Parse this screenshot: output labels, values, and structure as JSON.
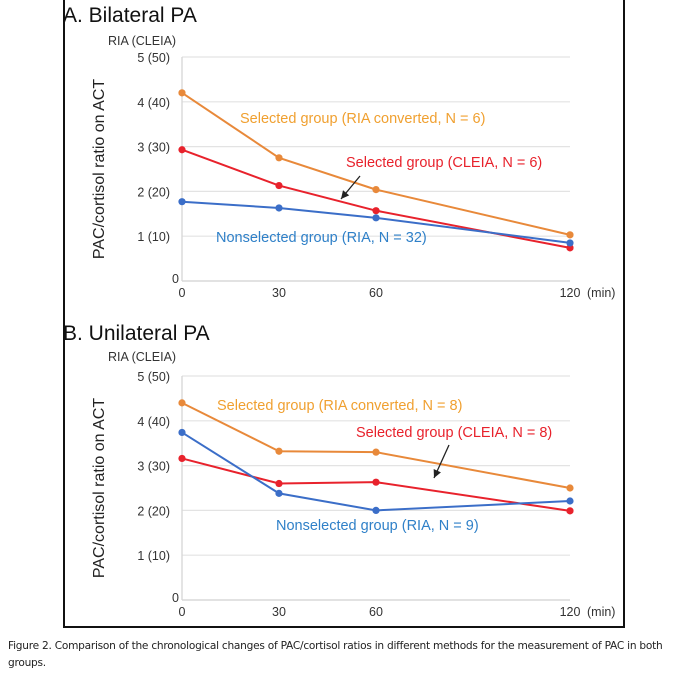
{
  "figure": {
    "caption_label": "Figure 2.",
    "caption_text": " Comparison of the chronological changes of PAC/cortisol ratios in different methods for the measurement of PAC in both groups."
  },
  "colors": {
    "orange_line": "#e8893a",
    "orange_text": "#f0a030",
    "red_line": "#e8222c",
    "red_text": "#e8222c",
    "blue_line": "#3b6ec8",
    "blue_text": "#2f80c8",
    "grid": "#e3e3e3",
    "arrow": "#222222"
  },
  "chart_data": [
    {
      "type": "line",
      "title": "A. Bilateral PA",
      "ylabel": "PAC/cortisol ratio on ACT",
      "ylabel_top": "RIA (CLEIA)",
      "xlabel": "(min)",
      "x": [
        0,
        30,
        60,
        120
      ],
      "x_tick_labels": [
        "0",
        "30",
        "60",
        "120"
      ],
      "ylim": [
        0,
        5
      ],
      "y_tick_labels": [
        "0",
        "1 (10)",
        "2 (20)",
        "3 (30)",
        "4 (40)",
        "5 (50)"
      ],
      "grid": true,
      "series": [
        {
          "name": "Selected group (RIA converted, N = 6)",
          "color": "orange",
          "values": [
            4.2,
            2.75,
            2.04,
            1.03
          ]
        },
        {
          "name": "Selected group (CLEIA, N = 6)",
          "color": "red",
          "values": [
            2.93,
            2.13,
            1.57,
            0.74
          ]
        },
        {
          "name": "Nonselected group (RIA, N = 32)",
          "color": "blue",
          "values": [
            1.77,
            1.63,
            1.41,
            0.85
          ]
        }
      ],
      "annotations": [
        {
          "text": "Selected group (RIA converted, N = 6)",
          "series": "orange",
          "position": "above orange line, center"
        },
        {
          "text": "Selected group (CLEIA, N = 6)",
          "series": "red",
          "position": "between orange and red lines, right",
          "arrow": true
        },
        {
          "text": "Nonselected group (RIA, N = 32)",
          "series": "blue",
          "position": "below blue line, center"
        }
      ]
    },
    {
      "type": "line",
      "title": "B. Unilateral PA",
      "ylabel": "PAC/cortisol ratio on ACT",
      "ylabel_top": "RIA (CLEIA)",
      "xlabel": "(min)",
      "x": [
        0,
        30,
        60,
        120
      ],
      "x_tick_labels": [
        "0",
        "30",
        "60",
        "120"
      ],
      "ylim": [
        0,
        5
      ],
      "y_tick_labels": [
        "0",
        "1 (10)",
        "2 (20)",
        "3 (30)",
        "4 (40)",
        "5 (50)"
      ],
      "grid": true,
      "series": [
        {
          "name": "Selected group (RIA converted, N = 8)",
          "color": "orange",
          "values": [
            4.4,
            3.32,
            3.3,
            2.5
          ]
        },
        {
          "name": "Selected group (CLEIA, N = 8)",
          "color": "red",
          "values": [
            3.16,
            2.6,
            2.63,
            1.99
          ]
        },
        {
          "name": "Nonselected group (RIA, N = 9)",
          "color": "blue",
          "values": [
            3.74,
            2.38,
            2.0,
            2.21
          ]
        }
      ],
      "annotations": [
        {
          "text": "Selected group (RIA converted, N = 8)",
          "series": "orange",
          "position": "above orange line, left-center"
        },
        {
          "text": "Selected group (CLEIA, N = 8)",
          "series": "red",
          "position": "above red line, right",
          "arrow": true
        },
        {
          "text": "Nonselected group (RIA, N = 9)",
          "series": "blue",
          "position": "below blue line, center"
        }
      ]
    }
  ]
}
